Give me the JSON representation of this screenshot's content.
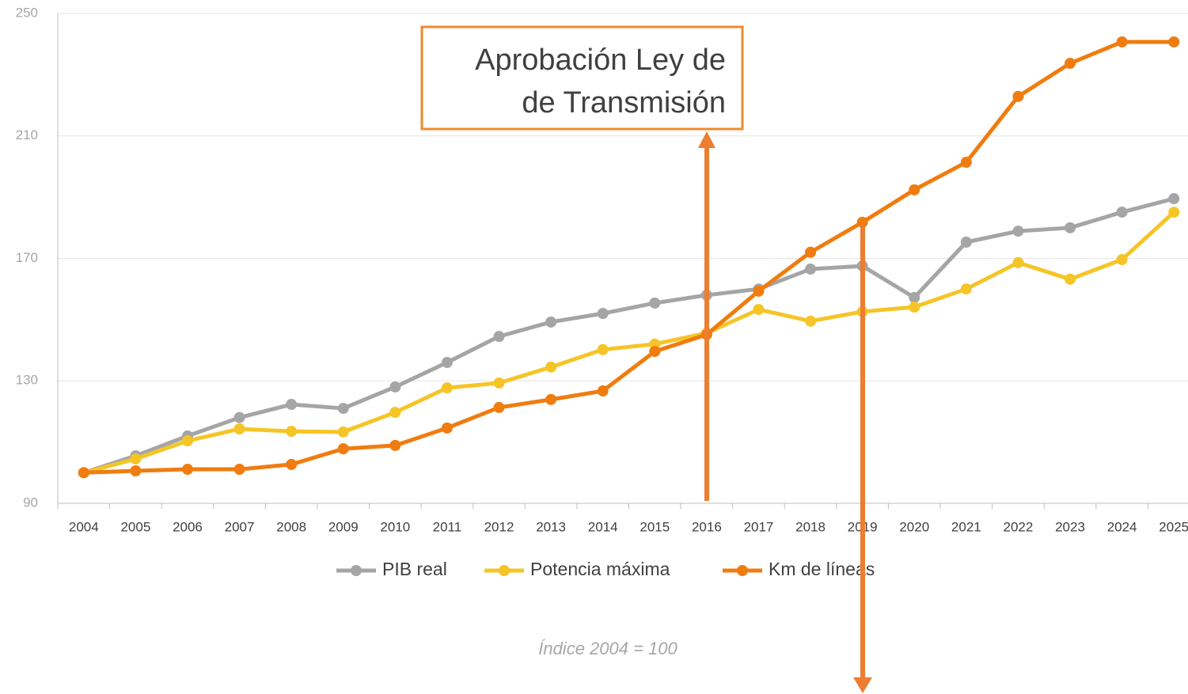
{
  "chart_data": {
    "type": "line",
    "categories": [
      "2004",
      "2005",
      "2006",
      "2007",
      "2008",
      "2009",
      "2010",
      "2011",
      "2012",
      "2013",
      "2014",
      "2015",
      "2016",
      "2017",
      "2018",
      "2019",
      "2020",
      "2021",
      "2022",
      "2023",
      "2024",
      "2025"
    ],
    "series": [
      {
        "name": "PIB real",
        "color": "#a5a5a5",
        "values": [
          100,
          105.5,
          112,
          118,
          122.3,
          121,
          128,
          136,
          144.5,
          149.2,
          152,
          155.4,
          158,
          160,
          166.5,
          167.5,
          157.2,
          175.3,
          178.9,
          180,
          185.1,
          189.5
        ]
      },
      {
        "name": "Potencia máxima",
        "color": "#f5c527",
        "values": [
          100,
          104.5,
          110.4,
          114.3,
          113.5,
          113.3,
          119.7,
          127.7,
          129.3,
          134.5,
          140.2,
          142,
          145.6,
          153.3,
          149.5,
          152.6,
          154.1,
          160,
          168.6,
          163.2,
          169.6,
          185.1
        ]
      },
      {
        "name": "Km de líneas",
        "color": "#f07c0f",
        "values": [
          100,
          100.6,
          101.1,
          101.1,
          102.7,
          107.8,
          108.9,
          114.6,
          121.3,
          123.9,
          126.7,
          139.6,
          145.1,
          159.3,
          172,
          181.8,
          192.4,
          201.4,
          222.9,
          233.7,
          240.7,
          240.7
        ]
      }
    ],
    "ylim": [
      90,
      250
    ],
    "yticks": [
      90,
      130,
      170,
      210,
      250
    ],
    "grid": true,
    "annotation": [
      "Aprobación Ley de",
      "de Transmisión"
    ],
    "footnote": "Índice 2004 = 100"
  }
}
